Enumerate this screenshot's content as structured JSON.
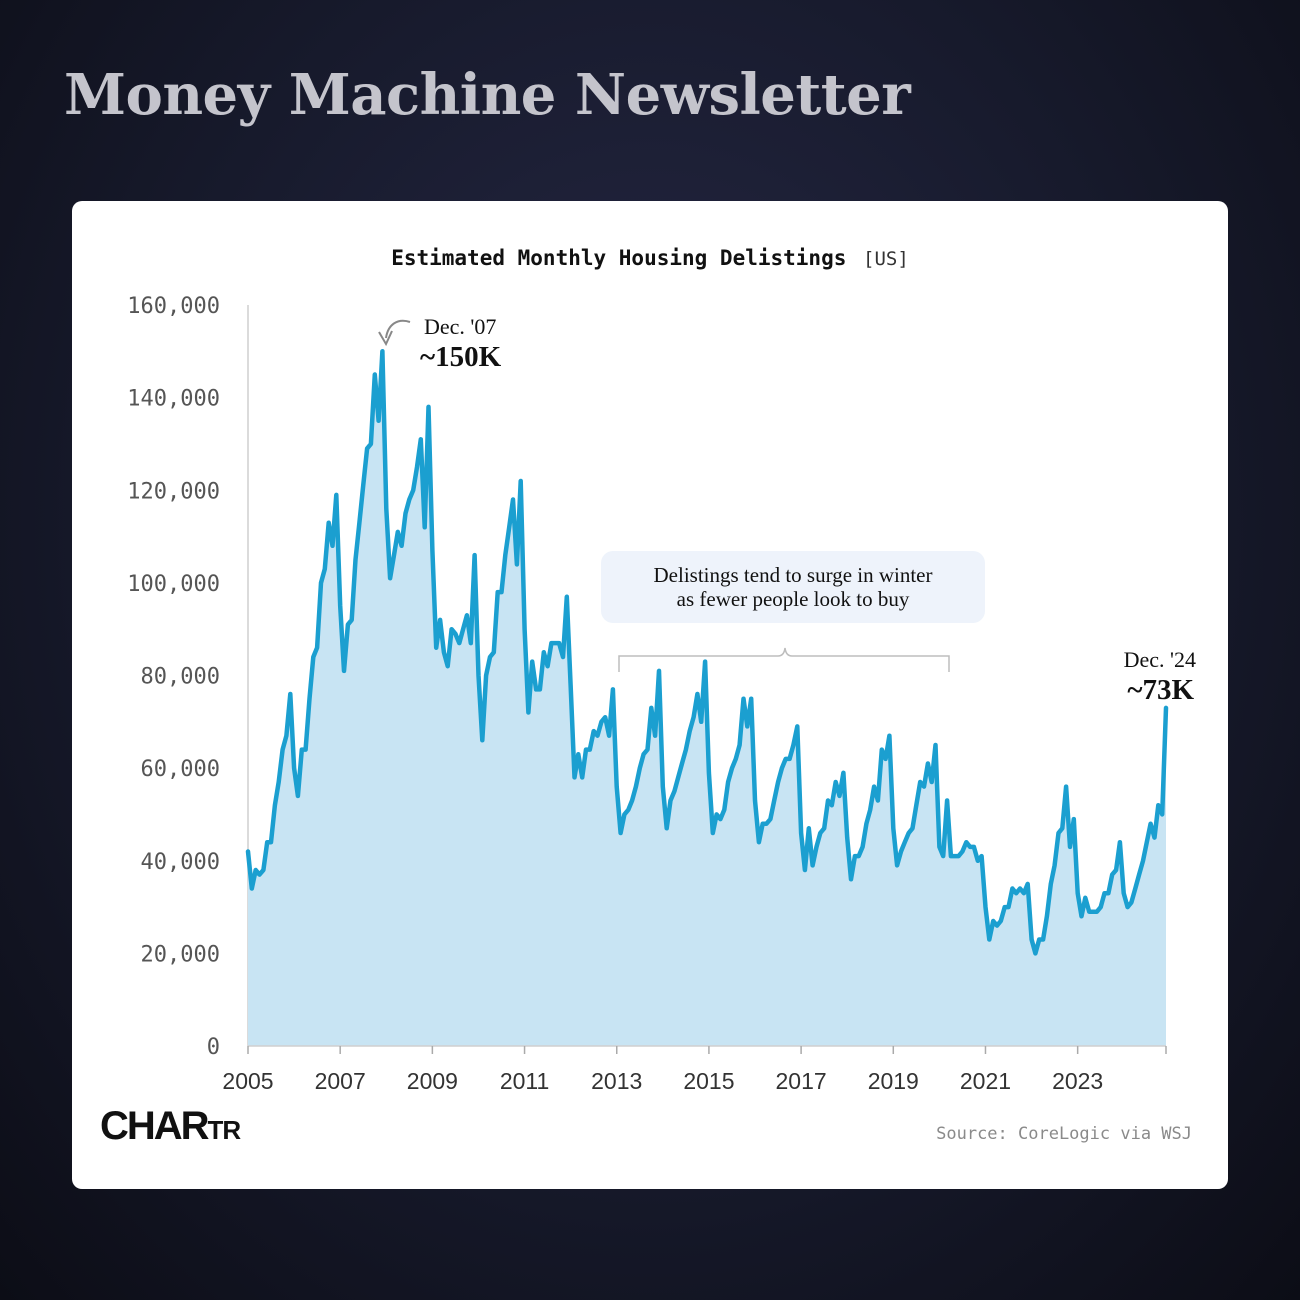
{
  "header": {
    "title": "Money Machine Newsletter"
  },
  "chart": {
    "title": "Estimated Monthly Housing Delistings",
    "region": "[US]",
    "callout": [
      "Delistings tend to surge in winter",
      "as fewer people look to buy"
    ],
    "peak_annotation": {
      "date": "Dec. '07",
      "value": "~150K"
    },
    "end_annotation": {
      "date": "Dec. '24",
      "value": "~73K"
    }
  },
  "footer": {
    "logo_main": "CHAR",
    "logo_small": "TR",
    "source": "Source: CoreLogic via WSJ"
  },
  "colors": {
    "line": "#1b9fd0",
    "fill": "#c8e4f3",
    "background": "#171a2c"
  },
  "chart_data": {
    "type": "area",
    "title": "Estimated Monthly Housing Delistings",
    "x_start": "2005-01",
    "x_end": "2024-12",
    "xlabel": "",
    "ylabel": "",
    "ylim": [
      0,
      160000
    ],
    "yticks": [
      "0",
      "20,000",
      "40,000",
      "60,000",
      "80,000",
      "100,000",
      "120,000",
      "140,000",
      "160,000"
    ],
    "yticks_values": [
      0,
      20000,
      40000,
      60000,
      80000,
      100000,
      120000,
      140000,
      160000
    ],
    "xticks": [
      "2005",
      "2007",
      "2009",
      "2011",
      "2013",
      "2015",
      "2017",
      "2019",
      "2021",
      "2023"
    ],
    "grid": false,
    "series": [
      {
        "values": [
          42000,
          34000,
          38000,
          37000,
          38000,
          44000,
          44000,
          52000,
          57000,
          64000,
          67000,
          76000,
          60000,
          54000,
          64000,
          64000,
          75000,
          84000,
          86000,
          100000,
          103000,
          113000,
          108000,
          119000,
          95000,
          81000,
          91000,
          92000,
          105000,
          113000,
          121000,
          129000,
          130000,
          145000,
          135000,
          150000,
          116000,
          101000,
          106000,
          111000,
          108000,
          115000,
          118000,
          120000,
          125000,
          131000,
          112000,
          138000,
          107000,
          86000,
          92000,
          85000,
          82000,
          90000,
          89000,
          87000,
          90000,
          93000,
          87000,
          106000,
          80000,
          66000,
          80000,
          84000,
          85000,
          98000,
          98000,
          106000,
          112000,
          118000,
          104000,
          122000,
          90000,
          72000,
          83000,
          77000,
          77000,
          85000,
          82000,
          87000,
          87000,
          87000,
          84000,
          97000,
          78000,
          58000,
          63000,
          58000,
          64000,
          64000,
          68000,
          67000,
          70000,
          71000,
          67000,
          77000,
          56000,
          46000,
          50000,
          51000,
          53000,
          56000,
          60000,
          63000,
          64000,
          73000,
          67000,
          81000,
          56000,
          47000,
          53000,
          55000,
          58000,
          61000,
          64000,
          68000,
          71000,
          76000,
          70000,
          83000,
          59000,
          46000,
          50000,
          49000,
          51000,
          57000,
          60000,
          62000,
          65000,
          75000,
          69000,
          75000,
          53000,
          44000,
          48000,
          48000,
          49000,
          53000,
          57000,
          60000,
          62000,
          62000,
          65000,
          69000,
          46000,
          38000,
          47000,
          39000,
          43000,
          46000,
          47000,
          53000,
          52000,
          57000,
          54000,
          59000,
          45000,
          36000,
          41000,
          41000,
          43000,
          48000,
          51000,
          56000,
          53000,
          64000,
          62000,
          67000,
          47000,
          39000,
          42000,
          44000,
          46000,
          47000,
          52000,
          57000,
          56000,
          61000,
          57000,
          65000,
          43000,
          41000,
          53000,
          41000,
          41000,
          41000,
          42000,
          44000,
          43000,
          43000,
          40000,
          41000,
          30000,
          23000,
          27000,
          26000,
          27000,
          30000,
          30000,
          34000,
          33000,
          34000,
          33000,
          35000,
          23000,
          20000,
          23000,
          23000,
          28000,
          35000,
          39000,
          46000,
          47000,
          56000,
          43000,
          49000,
          33000,
          28000,
          32000,
          29000,
          29000,
          29000,
          30000,
          33000,
          33000,
          37000,
          38000,
          44000,
          33000,
          30000,
          31000,
          34000,
          37000,
          40000,
          44000,
          48000,
          45000,
          52000,
          50000,
          73000
        ]
      }
    ]
  }
}
